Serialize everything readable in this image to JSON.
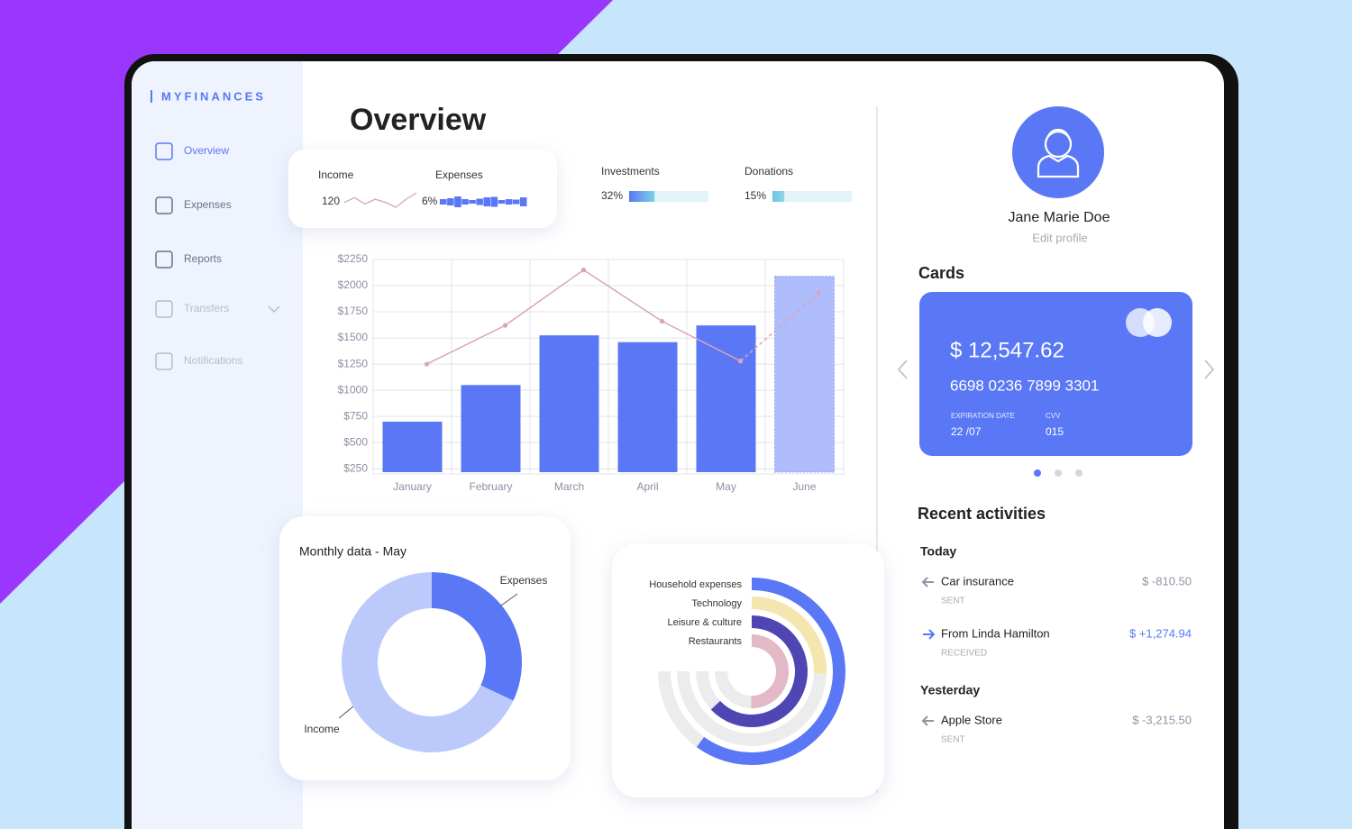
{
  "brand": "MYFINANCES",
  "nav": [
    "Overview",
    "Expenses",
    "Reports",
    "Transfers",
    "Notifications"
  ],
  "page_title": "Overview",
  "summary": {
    "income": {
      "label": "Income",
      "value": 120,
      "trend": [
        3,
        4.5,
        2.5,
        4,
        3,
        1.5,
        4,
        6
      ]
    },
    "expenses": {
      "label": "Expenses",
      "value": 6,
      "value_label": "6%",
      "trend": [
        3,
        4,
        6,
        3,
        2,
        3.5,
        5,
        5.5,
        2,
        3,
        2.5,
        5
      ]
    },
    "investments": {
      "label": "Investments",
      "value": 32,
      "value_label": "32%"
    },
    "donations": {
      "label": "Donations",
      "value": 15,
      "value_label": "15%"
    }
  },
  "chart_data": [
    {
      "type": "bar",
      "categories": [
        "January",
        "February",
        "March",
        "April",
        "May",
        "June"
      ],
      "values": [
        700,
        1050,
        1525,
        1460,
        1620,
        2090
      ],
      "colors": [
        "#5a78f5",
        "#5a78f5",
        "#5a78f5",
        "#5a78f5",
        "#5a78f5",
        "#aebcfb"
      ],
      "lines": [
        {
          "color": "#d9a4b6",
          "dashed": false,
          "values": [
            1250,
            1620,
            2150,
            1660,
            1280,
            null
          ]
        },
        {
          "color": "#d9a4b6",
          "dashed": true,
          "values": [
            null,
            null,
            null,
            null,
            1280,
            1930
          ]
        }
      ],
      "ylim": [
        200,
        2250
      ],
      "yticks": [
        {
          "value": 250,
          "label": "$250"
        },
        {
          "value": 500,
          "label": "$500"
        },
        {
          "value": 750,
          "label": "$750"
        },
        {
          "value": 1000,
          "label": "$1000"
        },
        {
          "value": 1250,
          "label": "$1250"
        },
        {
          "value": 1500,
          "label": "$1500"
        },
        {
          "value": 1750,
          "label": "$1750"
        },
        {
          "value": 2000,
          "label": "$2000"
        },
        {
          "value": 2250,
          "label": "$2250"
        }
      ],
      "grid": true
    },
    {
      "type": "donut",
      "title": "Monthly data - May",
      "categories": [
        "Expenses",
        "Income"
      ],
      "values": [
        32,
        68
      ],
      "colors": [
        "#5a78f5",
        "#bccafb"
      ]
    },
    {
      "type": "radial_bar",
      "categories": [
        "Household expenses",
        "Technology",
        "Leisure & culture",
        "Restaurants"
      ],
      "values": [
        80,
        34,
        84,
        67
      ],
      "colors": [
        "#5a78f5",
        "#f4e6ae",
        "#4f46b4",
        "#e3b9c7"
      ],
      "track_color": "#ececec",
      "rlim": [
        0,
        100
      ]
    }
  ],
  "profile": {
    "name": "Jane Marie Doe",
    "action": "Edit profile"
  },
  "cards": {
    "title": "Cards",
    "balance": "$ 12,547.62",
    "number": "6698 0236 7899 3301",
    "expiration_label": "EXPIRATION DATE",
    "expiration": "22 /07",
    "cvv_label": "CVV",
    "cvv": "015"
  },
  "activities": {
    "title": "Recent activities",
    "groups": [
      {
        "label": "Today",
        "items": [
          {
            "name": "Car insurance",
            "status": "SENT",
            "amount": "$ -810.50"
          },
          {
            "name": "From Linda Hamilton",
            "status": "RECEIVED",
            "amount": "$ +1,274.94"
          }
        ]
      },
      {
        "label": "Yesterday",
        "items": [
          {
            "name": "Apple Store",
            "status": "SENT",
            "amount": "$ -3,215.50"
          }
        ]
      }
    ]
  }
}
